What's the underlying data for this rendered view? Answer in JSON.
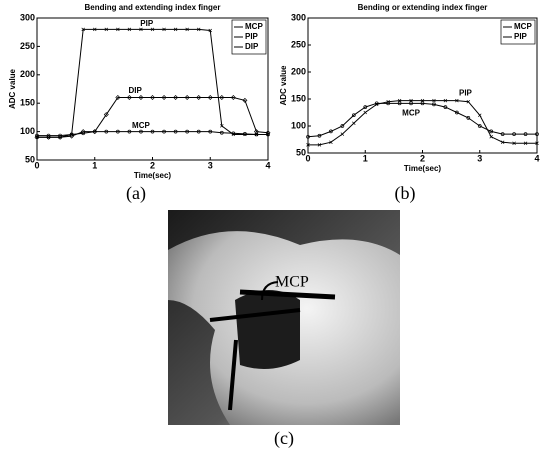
{
  "chart_data": [
    {
      "type": "line",
      "title": "Bending and extending index finger",
      "xlabel": "Time(sec)",
      "ylabel": "ADC value",
      "x": [
        0,
        0.2,
        0.4,
        0.6,
        0.8,
        1.0,
        1.2,
        1.4,
        1.6,
        1.8,
        2.0,
        2.2,
        2.4,
        2.6,
        2.8,
        3.0,
        3.2,
        3.4,
        3.6,
        3.8,
        4.0
      ],
      "series": [
        {
          "name": "MCP",
          "color": "#000000",
          "values": [
            93,
            93,
            93,
            95,
            97,
            100,
            100,
            100,
            100,
            100,
            100,
            100,
            100,
            100,
            100,
            100,
            98,
            97,
            96,
            95,
            95
          ]
        },
        {
          "name": "PIP",
          "color": "#000000",
          "values": [
            90,
            90,
            90,
            95,
            280,
            280,
            280,
            280,
            280,
            280,
            280,
            280,
            280,
            280,
            280,
            278,
            110,
            95,
            95,
            95,
            95
          ]
        },
        {
          "name": "DIP",
          "color": "#000000",
          "values": [
            90,
            90,
            90,
            92,
            100,
            100,
            130,
            160,
            160,
            160,
            160,
            160,
            160,
            160,
            160,
            160,
            160,
            160,
            155,
            100,
            98
          ]
        }
      ],
      "annotations": [
        {
          "text": "PIP",
          "x": 1.9,
          "y": 290
        },
        {
          "text": "DIP",
          "x": 1.7,
          "y": 172
        },
        {
          "text": "MCP",
          "x": 1.8,
          "y": 110
        }
      ],
      "xlim": [
        0,
        4
      ],
      "ylim": [
        50,
        300
      ],
      "xticks": [
        0,
        1,
        2,
        3,
        4
      ],
      "yticks": [
        50,
        100,
        150,
        200,
        250,
        300
      ],
      "legend": "upper right"
    },
    {
      "type": "line",
      "title": "Bending or extending index finger",
      "xlabel": "Time(sec)",
      "ylabel": "ADC value",
      "x": [
        0,
        0.2,
        0.4,
        0.6,
        0.8,
        1.0,
        1.2,
        1.4,
        1.6,
        1.8,
        2.0,
        2.2,
        2.4,
        2.6,
        2.8,
        3.0,
        3.2,
        3.4,
        3.6,
        3.8,
        4.0
      ],
      "series": [
        {
          "name": "MCP",
          "color": "#000000",
          "values": [
            80,
            82,
            90,
            100,
            120,
            135,
            142,
            142,
            142,
            142,
            142,
            140,
            135,
            125,
            115,
            100,
            90,
            85,
            85,
            85,
            85
          ]
        },
        {
          "name": "PIP",
          "color": "#000000",
          "values": [
            65,
            65,
            70,
            85,
            105,
            125,
            140,
            145,
            147,
            147,
            147,
            147,
            147,
            147,
            145,
            120,
            80,
            70,
            68,
            68,
            68
          ]
        }
      ],
      "annotations": [
        {
          "text": "PIP",
          "x": 2.75,
          "y": 160
        },
        {
          "text": "MCP",
          "x": 1.8,
          "y": 123
        }
      ],
      "xlim": [
        0,
        4
      ],
      "ylim": [
        50,
        300
      ],
      "xticks": [
        0,
        1,
        2,
        3,
        4
      ],
      "yticks": [
        50,
        100,
        150,
        200,
        250,
        300
      ],
      "legend": "upper right"
    }
  ],
  "panels": [
    "(a)",
    "(b)",
    "(c)"
  ],
  "photo": {
    "annotation": "MCP"
  }
}
